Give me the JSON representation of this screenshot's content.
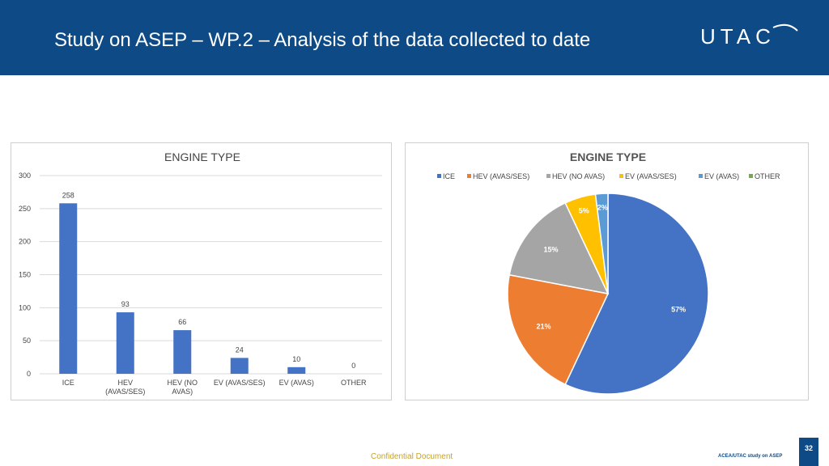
{
  "header": {
    "title": "Study on ASEP – WP.2 – Analysis of the data collected to date",
    "logo_text": "UTAC"
  },
  "footer": {
    "confidential": "Confidential Document",
    "study_label": "ACEA/UTAC study on ASEP",
    "page_number": "32"
  },
  "colors": {
    "header_bg": "#0e4a86",
    "bar": "#4472c4",
    "footer_text": "#c9a227"
  },
  "chart_data": [
    {
      "type": "bar",
      "title": "ENGINE TYPE",
      "categories": [
        "ICE",
        "HEV (AVAS/SES)",
        "HEV (NO AVAS)",
        "EV (AVAS/SES)",
        "EV (AVAS)",
        "OTHER"
      ],
      "category_lines": [
        [
          "ICE"
        ],
        [
          "HEV",
          "(AVAS/SES)"
        ],
        [
          "HEV (NO",
          "AVAS)"
        ],
        [
          "EV (AVAS/SES)"
        ],
        [
          "EV (AVAS)"
        ],
        [
          "OTHER"
        ]
      ],
      "values": [
        258,
        93,
        66,
        24,
        10,
        0
      ],
      "data_labels": [
        "258",
        "93",
        "66",
        "24",
        "10",
        "0"
      ],
      "ylim": [
        0,
        300
      ],
      "yticks": [
        0,
        50,
        100,
        150,
        200,
        250,
        300
      ],
      "ytick_labels": [
        "0",
        "50",
        "100",
        "150",
        "200",
        "250",
        "300"
      ],
      "grid": true,
      "color": "#4472c4"
    },
    {
      "type": "pie",
      "title": "ENGINE TYPE",
      "legend_position": "top",
      "slices": [
        {
          "label": "ICE",
          "value": 57,
          "pct_label": "57%",
          "color": "#4472c4"
        },
        {
          "label": "HEV (AVAS/SES)",
          "value": 21,
          "pct_label": "21%",
          "color": "#ed7d31"
        },
        {
          "label": "HEV (NO AVAS)",
          "value": 15,
          "pct_label": "15%",
          "color": "#a5a5a5"
        },
        {
          "label": "EV (AVAS/SES)",
          "value": 5,
          "pct_label": "5%",
          "color": "#ffc000"
        },
        {
          "label": "EV (AVAS)",
          "value": 2,
          "pct_label": "2%",
          "color": "#5b9bd5"
        },
        {
          "label": "OTHER",
          "value": 0,
          "pct_label": "",
          "color": "#70ad47"
        }
      ]
    }
  ]
}
